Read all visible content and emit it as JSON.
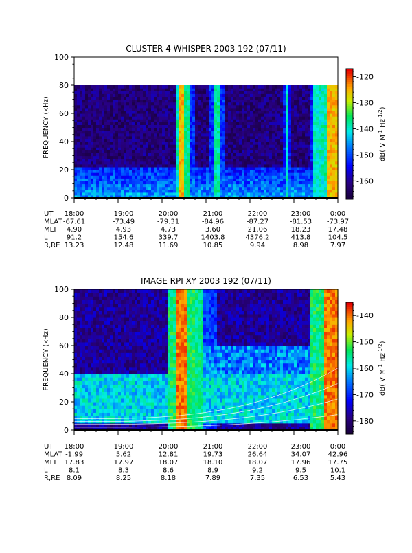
{
  "panels": [
    {
      "title": "CLUSTER 4 WHISPER 2003 192 (07/11)",
      "ylabel": "FREQUENCY (kHz)",
      "cbar_label": "dB( V M⁻¹ Hz⁻¹ᐟ²)",
      "cbar_label_parts": {
        "main": "dB( V M",
        "e1": "-1",
        "mid": " Hz",
        "e2": "-1/2",
        "end": ")"
      },
      "cbar_ticks": [
        "-120",
        "-130",
        "-140",
        "-150",
        "-160"
      ],
      "ephemeris_labels": [
        "UT",
        "MLAT",
        "MLT",
        "L",
        "R,RE"
      ],
      "ephemeris": [
        [
          "18:00",
          "19:00",
          "20:00",
          "21:00",
          "22:00",
          "23:00",
          "0:00"
        ],
        [
          "-67.61",
          "-73.49",
          "-79.31",
          "-84.96",
          "-87.27",
          "-81.53",
          "-73.97"
        ],
        [
          "4.90",
          "4.93",
          "4.73",
          "3.60",
          "21.06",
          "18.23",
          "17.48"
        ],
        [
          "91.2",
          "154.6",
          "339.7",
          "1403.8",
          "4376.2",
          "413.8",
          "104.5"
        ],
        [
          "13.23",
          "12.48",
          "11.69",
          "10.85",
          "9.94",
          "8.98",
          "7.97"
        ]
      ]
    },
    {
      "title": "IMAGE RPI XY 2003 192 (07/11)",
      "ylabel": "FREQUENCY (kHz)",
      "cbar_label_parts": {
        "main": "dB( V M",
        "e1": "-1",
        "mid": " Hz",
        "e2": "-1/2",
        "end": ")"
      },
      "cbar_ticks": [
        "-140",
        "-150",
        "-160",
        "-170",
        "-180"
      ],
      "ephemeris_labels": [
        "UT",
        "MLAT",
        "MLT",
        "L",
        "R,RE"
      ],
      "ephemeris": [
        [
          "18:00",
          "19:00",
          "20:00",
          "21:00",
          "22:00",
          "23:00",
          "0:00"
        ],
        [
          "-1.99",
          "5.62",
          "12.81",
          "19.73",
          "26.64",
          "34.07",
          "42.96"
        ],
        [
          "17.83",
          "17.97",
          "18.07",
          "18.10",
          "18.07",
          "17.96",
          "17.75"
        ],
        [
          "8.1",
          "8.3",
          "8.6",
          "8.9",
          "9.2",
          "9.5",
          "10.1"
        ],
        [
          "8.09",
          "8.25",
          "8.18",
          "7.89",
          "7.35",
          "6.53",
          "5.43"
        ]
      ]
    }
  ],
  "chart_data": [
    {
      "type": "heatmap",
      "title": "CLUSTER 4 WHISPER 2003 192 (07/11)",
      "xlabel": "UT",
      "ylabel": "FREQUENCY (kHz)",
      "x_ticks": [
        "18:00",
        "19:00",
        "20:00",
        "21:00",
        "22:00",
        "23:00",
        "0:00"
      ],
      "x_range_hours": [
        18,
        24
      ],
      "ylim": [
        0,
        100
      ],
      "y_ticks": [
        0,
        20,
        40,
        60,
        80,
        100
      ],
      "data_freq_max_khz": 80,
      "colorbar_unit": "dB( V M-1 Hz-1/2)",
      "colorbar_range_db": [
        -167,
        -117
      ],
      "colorbar_ticks": [
        -120,
        -130,
        -140,
        -150,
        -160
      ],
      "background_db": -162,
      "low_freq_band": {
        "fmax_khz": 22,
        "db": -145
      },
      "broadband_bursts": [
        {
          "t_hours": 20.45,
          "width_hours": 0.06,
          "db": -125,
          "note": "bright yellow-red burst with fuzzy halo"
        },
        {
          "t_hours": 20.55,
          "width_hours": 0.08,
          "db": -138
        },
        {
          "t_hours": 21.25,
          "width_hours": 0.08,
          "db": -138
        },
        {
          "t_hours": 22.85,
          "width_hours": 0.04,
          "db": -140
        },
        {
          "t_hours": 23.5,
          "width_hours": 0.04,
          "db": -140
        },
        {
          "t_hours": 23.85,
          "width_hours": 0.12,
          "db": -125
        }
      ]
    },
    {
      "type": "heatmap",
      "title": "IMAGE RPI XY 2003 192 (07/11)",
      "xlabel": "UT",
      "ylabel": "FREQUENCY (kHz)",
      "x_ticks": [
        "18:00",
        "19:00",
        "20:00",
        "21:00",
        "22:00",
        "23:00",
        "0:00"
      ],
      "x_range_hours": [
        18,
        24
      ],
      "ylim": [
        0,
        100
      ],
      "y_ticks": [
        0,
        20,
        40,
        60,
        80,
        100
      ],
      "colorbar_unit": "dB( V M-1 Hz-1/2)",
      "colorbar_range_db": [
        -185,
        -135
      ],
      "colorbar_ticks": [
        -140,
        -150,
        -160,
        -170,
        -180
      ],
      "background_db": -178,
      "mid_freq_band": {
        "fmin_khz": 5,
        "fmax_khz": 40,
        "db": -160
      },
      "broadband_bursts": [
        {
          "t_hours": 20.45,
          "width_hours": 0.12,
          "db": -140,
          "note": "red column"
        },
        {
          "t_hours": 20.75,
          "width_hours": 0.2,
          "db": -155
        },
        {
          "t_hours": 23.9,
          "width_hours": 0.2,
          "db": -140,
          "note": "red column at right edge"
        }
      ],
      "overlay_curves": "white cyclotron-harmonic traces rising toward 0:00"
    }
  ]
}
